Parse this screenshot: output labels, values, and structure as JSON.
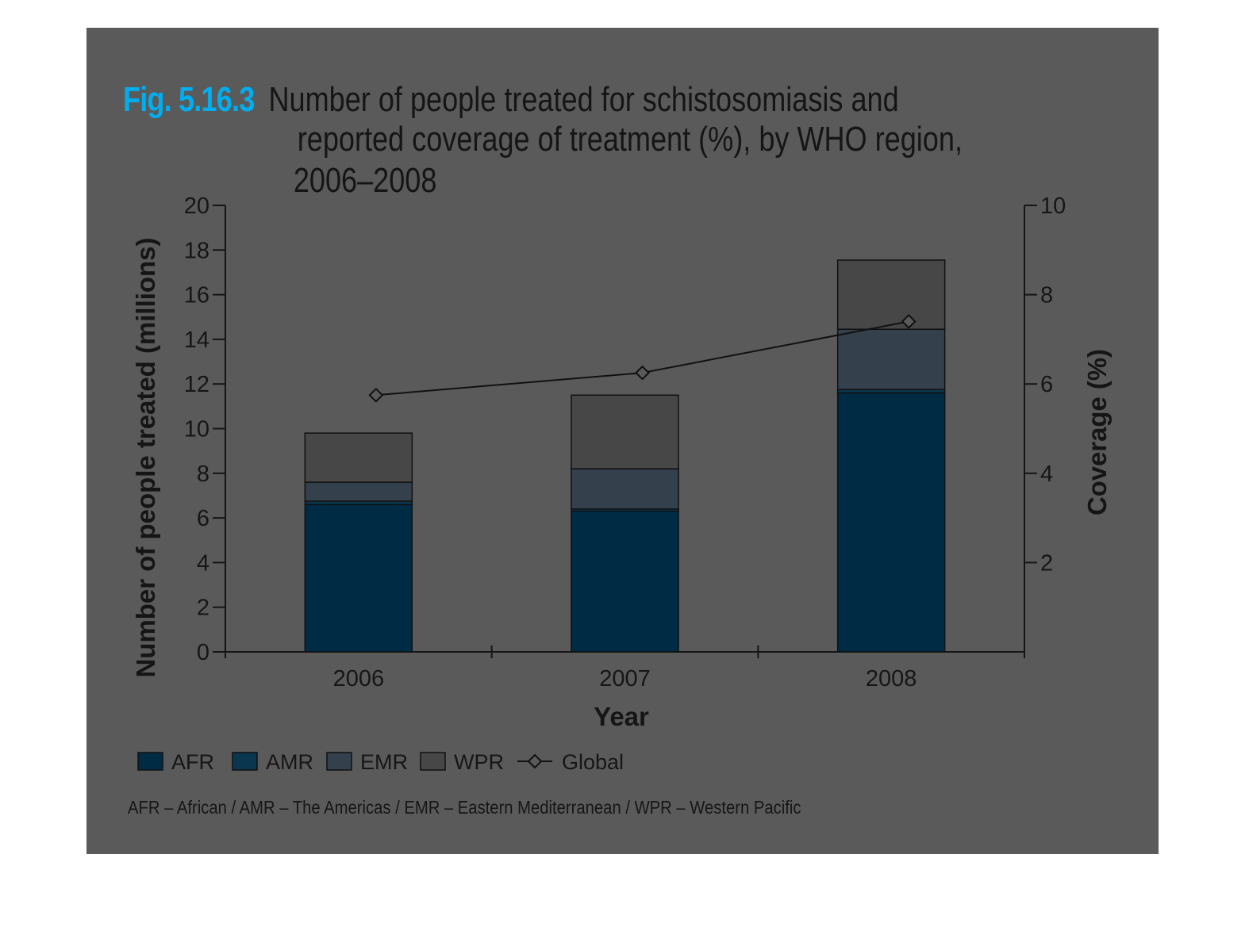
{
  "figure": {
    "number": "Fig. 5.16.3",
    "title_lines": [
      "Number of people treated for schistosomiasis and",
      "reported coverage of treatment (%), by WHO region,",
      "2006–2008"
    ],
    "footnote": "AFR – African / AMR – The Americas / EMR – Eastern Mediterranean / WPR – Western Pacific"
  },
  "colors": {
    "background": "#5a5a5a",
    "AFR": "#002b44",
    "AMR": "#0b3650",
    "EMR": "#34404c",
    "WPR": "#474747",
    "Global": "#111111",
    "accent": "#00aeef"
  },
  "chart_data": {
    "type": "bar",
    "stacked": true,
    "title": "Number of people treated for schistosomiasis and reported coverage of treatment (%), by WHO region, 2006–2008",
    "categories": [
      "2006",
      "2007",
      "2008"
    ],
    "xlabel": "Year",
    "ylabel": "Number of people treated (millions)",
    "y2label": "Coverage (%)",
    "ylim": [
      0,
      20
    ],
    "y2lim": [
      0,
      10
    ],
    "yticks": [
      0,
      2,
      4,
      6,
      8,
      10,
      12,
      14,
      16,
      18,
      20
    ],
    "y2ticks": [
      2,
      4,
      6,
      8,
      10
    ],
    "series": [
      {
        "name": "AFR",
        "axis": "left",
        "values": [
          6.6,
          6.3,
          11.6
        ]
      },
      {
        "name": "AMR",
        "axis": "left",
        "values": [
          0.15,
          0.1,
          0.15
        ]
      },
      {
        "name": "EMR",
        "axis": "left",
        "values": [
          0.85,
          1.8,
          2.7
        ]
      },
      {
        "name": "WPR",
        "axis": "left",
        "values": [
          2.2,
          3.3,
          3.1
        ]
      },
      {
        "name": "Global",
        "axis": "right",
        "type": "line",
        "marker": "diamond",
        "values": [
          5.75,
          6.25,
          7.4
        ]
      }
    ],
    "legend": "bottom-left",
    "grid": false
  }
}
